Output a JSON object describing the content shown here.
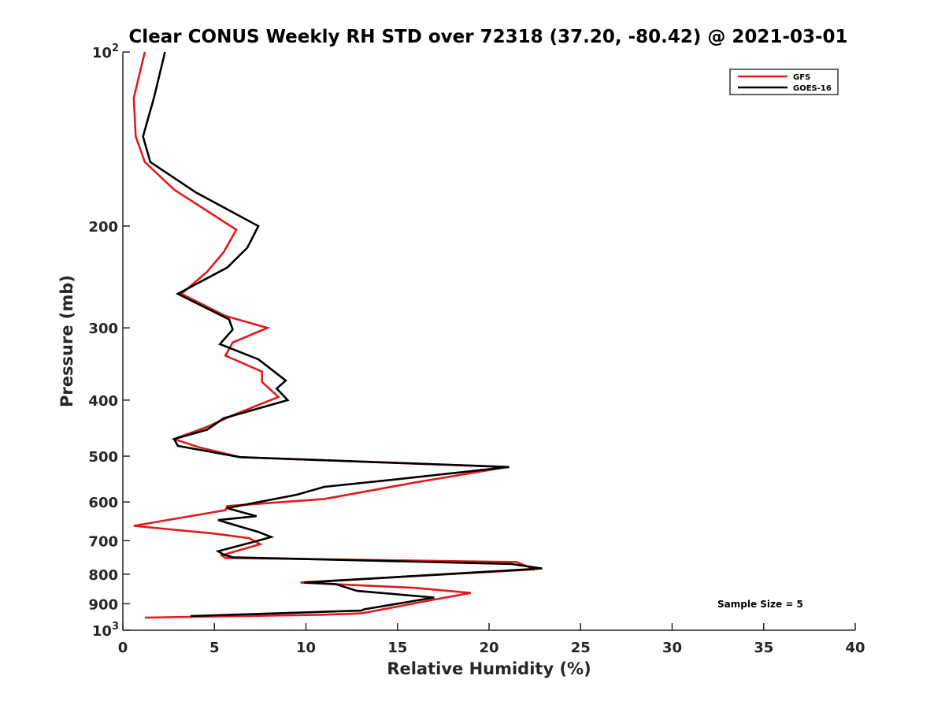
{
  "chart_data": {
    "type": "line",
    "title": "Clear CONUS Weekly RH STD over 72318 (37.20, -80.42) @ 2021-03-01",
    "xlabel": "Relative Humidity (%)",
    "ylabel": "Pressure (mb)",
    "xlim": [
      0,
      40
    ],
    "ylim": [
      100,
      1000
    ],
    "y_scale": "log",
    "y_reversed": true,
    "grid": false,
    "legend_position": "top-right",
    "x_ticks": [
      "0",
      "5",
      "10",
      "15",
      "20",
      "25",
      "30",
      "35",
      "40"
    ],
    "y_ticks": [
      {
        "value": 100,
        "base": "10",
        "exp": "2",
        "label": ""
      },
      {
        "value": 200,
        "base": "",
        "exp": "",
        "label": "200"
      },
      {
        "value": 300,
        "base": "",
        "exp": "",
        "label": "300"
      },
      {
        "value": 400,
        "base": "",
        "exp": "",
        "label": "400"
      },
      {
        "value": 500,
        "base": "",
        "exp": "",
        "label": "500"
      },
      {
        "value": 600,
        "base": "",
        "exp": "",
        "label": "600"
      },
      {
        "value": 700,
        "base": "",
        "exp": "",
        "label": "700"
      },
      {
        "value": 800,
        "base": "",
        "exp": "",
        "label": "800"
      },
      {
        "value": 900,
        "base": "",
        "exp": "",
        "label": "900"
      },
      {
        "value": 1000,
        "base": "10",
        "exp": "3",
        "label": ""
      }
    ],
    "annotation": "Sample Size = 5",
    "series": [
      {
        "name": "GFS",
        "color": "#e31a1c",
        "points": [
          [
            1.2,
            100
          ],
          [
            0.6,
            120
          ],
          [
            0.7,
            140
          ],
          [
            1.2,
            155
          ],
          [
            2.8,
            173
          ],
          [
            6.2,
            203
          ],
          [
            5.5,
            222
          ],
          [
            4.6,
            240
          ],
          [
            3.2,
            262
          ],
          [
            5.6,
            286
          ],
          [
            7.9,
            300
          ],
          [
            6.0,
            318
          ],
          [
            5.6,
            335
          ],
          [
            7.6,
            357
          ],
          [
            7.6,
            372
          ],
          [
            8.5,
            395
          ],
          [
            6.0,
            425
          ],
          [
            4.6,
            445
          ],
          [
            2.8,
            467
          ],
          [
            4.1,
            482
          ],
          [
            6.4,
            502
          ],
          [
            21.0,
            522
          ],
          [
            16.0,
            555
          ],
          [
            11.0,
            593
          ],
          [
            5.7,
            610
          ],
          [
            5.6,
            620
          ],
          [
            0.6,
            660
          ],
          [
            4.9,
            680
          ],
          [
            6.9,
            693
          ],
          [
            7.5,
            710
          ],
          [
            5.4,
            742
          ],
          [
            5.6,
            750
          ],
          [
            21.5,
            762
          ],
          [
            22.5,
            785
          ],
          [
            9.7,
            827
          ],
          [
            16.0,
            845
          ],
          [
            19.0,
            862
          ],
          [
            17.0,
            885
          ],
          [
            13.2,
            933
          ],
          [
            13.0,
            935
          ],
          [
            11.0,
            940
          ],
          [
            1.2,
            951
          ]
        ]
      },
      {
        "name": "GOES-16",
        "color": "#000000",
        "points": [
          [
            2.3,
            100
          ],
          [
            1.7,
            120
          ],
          [
            1.1,
            140
          ],
          [
            1.5,
            155
          ],
          [
            4.0,
            175
          ],
          [
            7.4,
            200
          ],
          [
            6.8,
            218
          ],
          [
            5.7,
            236
          ],
          [
            3.0,
            262
          ],
          [
            5.8,
            290
          ],
          [
            6.0,
            302
          ],
          [
            5.3,
            320
          ],
          [
            7.4,
            340
          ],
          [
            8.9,
            370
          ],
          [
            8.4,
            382
          ],
          [
            9.0,
            400
          ],
          [
            5.5,
            430
          ],
          [
            4.6,
            450
          ],
          [
            2.8,
            467
          ],
          [
            3.0,
            480
          ],
          [
            6.4,
            502
          ],
          [
            21.1,
            522
          ],
          [
            15.0,
            548
          ],
          [
            11.0,
            565
          ],
          [
            9.5,
            583
          ],
          [
            5.7,
            615
          ],
          [
            7.3,
            635
          ],
          [
            5.2,
            645
          ],
          [
            7.4,
            676
          ],
          [
            8.1,
            690
          ],
          [
            7.4,
            700
          ],
          [
            5.2,
            730
          ],
          [
            5.5,
            740
          ],
          [
            6.0,
            748
          ],
          [
            21.2,
            768
          ],
          [
            22.9,
            782
          ],
          [
            9.9,
            827
          ],
          [
            11.6,
            832
          ],
          [
            12.8,
            855
          ],
          [
            17.0,
            878
          ],
          [
            13.2,
            920
          ],
          [
            13.0,
            925
          ],
          [
            3.7,
            945
          ]
        ]
      }
    ]
  }
}
